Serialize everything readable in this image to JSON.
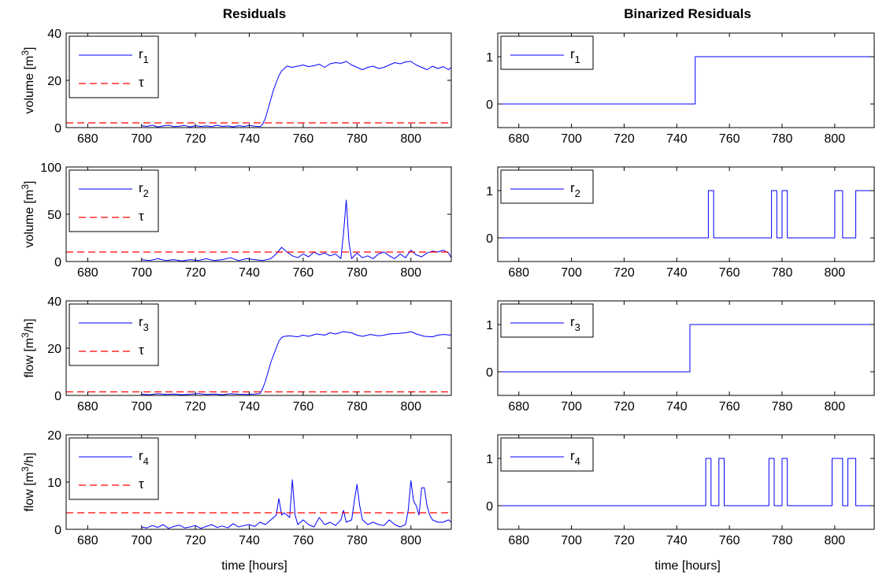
{
  "column_titles": [
    "Residuals",
    "Binarized Residuals"
  ],
  "x_axis_label": "time [hours]",
  "colors": {
    "residual": "#0000ff",
    "threshold": "#ff0000"
  },
  "chart_data": [
    {
      "type": "line",
      "panel": "residuals-1",
      "ylabel": "volume [m3]",
      "xlim": [
        672,
        815
      ],
      "ylim": [
        0,
        40
      ],
      "yticks": [
        0,
        20,
        40
      ],
      "xticks": [
        680,
        700,
        720,
        740,
        760,
        780,
        800
      ],
      "legend": [
        {
          "base": "r",
          "sub": "1"
        },
        {
          "base": "τ"
        }
      ],
      "series": [
        {
          "name": "r1",
          "style": "solid",
          "x": [
            700,
            702,
            704,
            706,
            708,
            710,
            712,
            714,
            716,
            718,
            720,
            722,
            724,
            726,
            728,
            730,
            732,
            734,
            736,
            738,
            740,
            742,
            744,
            745,
            746,
            747,
            748,
            749,
            750,
            751,
            752,
            753,
            754,
            756,
            758,
            760,
            762,
            764,
            766,
            768,
            770,
            772,
            774,
            776,
            778,
            780,
            782,
            784,
            786,
            788,
            790,
            792,
            794,
            796,
            798,
            800,
            802,
            804,
            806,
            808,
            810,
            812,
            814,
            815
          ],
          "y": [
            0.8,
            0.5,
            1.0,
            0.3,
            0.7,
            1.0,
            0.4,
            0.6,
            0.9,
            0.3,
            0.8,
            0.5,
            0.7,
            0.4,
            1.0,
            0.5,
            0.7,
            0.3,
            0.8,
            0.5,
            0.9,
            0.6,
            0.4,
            1.5,
            4,
            8,
            12,
            16,
            19,
            22,
            24,
            25,
            26,
            25.5,
            26,
            26.5,
            25.8,
            26.2,
            26.8,
            25.5,
            27,
            27.5,
            27.2,
            28,
            26.5,
            25.5,
            24.5,
            25.5,
            26,
            25,
            25.5,
            26.5,
            27.5,
            27,
            27.8,
            28,
            26.5,
            25.5,
            24.5,
            26,
            25,
            25.8,
            24.5,
            25.5
          ]
        },
        {
          "name": "τ",
          "style": "dashed",
          "x": [
            672,
            815
          ],
          "y": [
            2,
            2
          ]
        }
      ]
    },
    {
      "type": "line",
      "panel": "binarized-1",
      "ylabel": "",
      "xlim": [
        672,
        815
      ],
      "ylim": [
        -0.5,
        1.5
      ],
      "yticks": [
        0,
        1
      ],
      "xticks": [
        680,
        700,
        720,
        740,
        760,
        780,
        800
      ],
      "legend": [
        {
          "base": "r",
          "sub": "1"
        }
      ],
      "series": [
        {
          "name": "r1",
          "style": "solid",
          "x": [
            672,
            747,
            747,
            815
          ],
          "y": [
            0,
            0,
            1,
            1
          ]
        }
      ]
    },
    {
      "type": "line",
      "panel": "residuals-2",
      "ylabel": "volume [m3]",
      "xlim": [
        672,
        815
      ],
      "ylim": [
        0,
        100
      ],
      "yticks": [
        0,
        50,
        100
      ],
      "xticks": [
        680,
        700,
        720,
        740,
        760,
        780,
        800
      ],
      "legend": [
        {
          "base": "r",
          "sub": "2"
        },
        {
          "base": "τ"
        }
      ],
      "series": [
        {
          "name": "r2",
          "style": "solid",
          "x": [
            700,
            703,
            706,
            709,
            712,
            715,
            718,
            721,
            724,
            727,
            730,
            733,
            736,
            739,
            742,
            745,
            748,
            750,
            752,
            754,
            756,
            758,
            760,
            762,
            764,
            766,
            768,
            770,
            772,
            774,
            775,
            776,
            777,
            778,
            780,
            782,
            784,
            786,
            788,
            790,
            792,
            794,
            796,
            798,
            800,
            802,
            804,
            806,
            808,
            810,
            812,
            814,
            815
          ],
          "y": [
            2,
            1,
            3,
            1,
            2,
            0.5,
            2,
            1,
            3,
            1,
            2,
            4,
            1,
            3,
            2,
            1,
            3,
            8,
            15,
            10,
            6,
            4,
            8,
            5,
            10,
            7,
            9,
            6,
            8,
            3,
            30,
            65,
            20,
            3,
            9,
            4,
            6,
            3,
            8,
            10,
            6,
            3,
            8,
            4,
            12,
            7,
            5,
            9,
            11,
            10,
            12,
            9,
            4
          ]
        },
        {
          "name": "τ",
          "style": "dashed",
          "x": [
            672,
            815
          ],
          "y": [
            10,
            10
          ]
        }
      ]
    },
    {
      "type": "line",
      "panel": "binarized-2",
      "ylabel": "",
      "xlim": [
        672,
        815
      ],
      "ylim": [
        -0.5,
        1.5
      ],
      "yticks": [
        0,
        1
      ],
      "xticks": [
        680,
        700,
        720,
        740,
        760,
        780,
        800
      ],
      "legend": [
        {
          "base": "r",
          "sub": "2"
        }
      ],
      "series": [
        {
          "name": "r2",
          "style": "solid",
          "x": [
            672,
            752,
            752,
            754,
            754,
            776,
            776,
            778,
            778,
            780,
            780,
            782,
            782,
            800,
            800,
            803,
            803,
            808,
            808,
            815
          ],
          "y": [
            0,
            0,
            1,
            1,
            0,
            0,
            1,
            1,
            0,
            0,
            1,
            1,
            0,
            0,
            1,
            1,
            0,
            0,
            1,
            1
          ]
        }
      ]
    },
    {
      "type": "line",
      "panel": "residuals-3",
      "ylabel": "flow [m3/h]",
      "xlim": [
        672,
        815
      ],
      "ylim": [
        0,
        40
      ],
      "yticks": [
        0,
        20,
        40
      ],
      "xticks": [
        680,
        700,
        720,
        740,
        760,
        780,
        800
      ],
      "legend": [
        {
          "base": "r",
          "sub": "3"
        },
        {
          "base": "τ"
        }
      ],
      "series": [
        {
          "name": "r3",
          "style": "solid",
          "x": [
            700,
            703,
            706,
            709,
            712,
            715,
            718,
            721,
            724,
            727,
            730,
            733,
            736,
            739,
            742,
            744,
            745,
            746,
            747,
            748,
            749,
            750,
            751,
            752,
            753,
            755,
            758,
            760,
            762,
            765,
            768,
            770,
            772,
            775,
            778,
            780,
            782,
            785,
            788,
            790,
            792,
            795,
            798,
            800,
            802,
            805,
            808,
            810,
            812,
            815
          ],
          "y": [
            0.5,
            0.3,
            0.7,
            0.4,
            0.6,
            0.3,
            0.5,
            0.8,
            0.4,
            0.6,
            0.3,
            0.7,
            0.5,
            0.4,
            0.6,
            0.8,
            3,
            6,
            10,
            14,
            17,
            20,
            23,
            24.5,
            25,
            25.2,
            24.8,
            25.5,
            25,
            26,
            25.5,
            26.5,
            26,
            27,
            26.5,
            25.5,
            25,
            25.8,
            25.2,
            25.5,
            26,
            26.2,
            26.5,
            27,
            26,
            25,
            24.8,
            25.5,
            25.8,
            25.5
          ]
        },
        {
          "name": "τ",
          "style": "dashed",
          "x": [
            672,
            815
          ],
          "y": [
            1.5,
            1.5
          ]
        }
      ]
    },
    {
      "type": "line",
      "panel": "binarized-3",
      "ylabel": "",
      "xlim": [
        672,
        815
      ],
      "ylim": [
        -0.5,
        1.5
      ],
      "yticks": [
        0,
        1
      ],
      "xticks": [
        680,
        700,
        720,
        740,
        760,
        780,
        800
      ],
      "legend": [
        {
          "base": "r",
          "sub": "3"
        }
      ],
      "series": [
        {
          "name": "r3",
          "style": "solid",
          "x": [
            672,
            745,
            745,
            815
          ],
          "y": [
            0,
            0,
            1,
            1
          ]
        }
      ]
    },
    {
      "type": "line",
      "panel": "residuals-4",
      "ylabel": "flow [m3/h]",
      "xlim": [
        672,
        815
      ],
      "ylim": [
        0,
        20
      ],
      "yticks": [
        0,
        10,
        20
      ],
      "xticks": [
        680,
        700,
        720,
        740,
        760,
        780,
        800
      ],
      "legend": [
        {
          "base": "r",
          "sub": "4"
        },
        {
          "base": "τ"
        }
      ],
      "series": [
        {
          "name": "r4",
          "style": "solid",
          "x": [
            700,
            702,
            704,
            706,
            708,
            710,
            712,
            714,
            716,
            718,
            720,
            722,
            724,
            726,
            728,
            730,
            732,
            734,
            736,
            738,
            740,
            742,
            744,
            746,
            748,
            750,
            751,
            752,
            753,
            754,
            755,
            756,
            757,
            758,
            760,
            762,
            764,
            766,
            768,
            770,
            772,
            774,
            775,
            776,
            778,
            779,
            780,
            781,
            782,
            784,
            786,
            788,
            790,
            792,
            794,
            796,
            798,
            799,
            800,
            801,
            802,
            803,
            804,
            805,
            806,
            807,
            808,
            810,
            812,
            814,
            815
          ],
          "y": [
            0.5,
            0.3,
            0.8,
            0.4,
            1,
            0.2,
            0.6,
            0.9,
            0.3,
            0.5,
            0.8,
            0.2,
            0.6,
            1,
            0.4,
            0.7,
            0.3,
            1.2,
            0.5,
            0.8,
            1,
            0.6,
            1.5,
            1,
            2,
            3,
            6.5,
            3,
            3.5,
            3,
            2.5,
            10.5,
            3,
            1,
            2,
            1,
            0.5,
            2.5,
            1,
            1.5,
            0.8,
            2,
            4,
            1.5,
            2,
            6,
            9.5,
            5,
            2,
            1,
            1.5,
            1,
            0.8,
            2,
            1,
            0.5,
            1,
            4,
            10.3,
            6,
            5,
            3,
            8.8,
            8.8,
            5,
            3,
            2,
            1.5,
            1.5,
            2,
            1.5
          ]
        },
        {
          "name": "τ",
          "style": "dashed",
          "x": [
            672,
            815
          ],
          "y": [
            3.5,
            3.5
          ]
        }
      ]
    },
    {
      "type": "line",
      "panel": "binarized-4",
      "ylabel": "",
      "xlim": [
        672,
        815
      ],
      "ylim": [
        -0.5,
        1.5
      ],
      "yticks": [
        0,
        1
      ],
      "xticks": [
        680,
        700,
        720,
        740,
        760,
        780,
        800
      ],
      "legend": [
        {
          "base": "r",
          "sub": "4"
        }
      ],
      "series": [
        {
          "name": "r4",
          "style": "solid",
          "x": [
            672,
            751,
            751,
            753,
            753,
            756,
            756,
            758,
            758,
            775,
            775,
            777,
            777,
            780,
            780,
            782,
            782,
            799,
            799,
            803,
            803,
            805,
            805,
            808,
            808,
            815
          ],
          "y": [
            0,
            0,
            1,
            1,
            0,
            0,
            1,
            1,
            0,
            0,
            1,
            1,
            0,
            0,
            1,
            1,
            0,
            0,
            1,
            1,
            0,
            0,
            1,
            1,
            0,
            0
          ]
        }
      ]
    }
  ]
}
